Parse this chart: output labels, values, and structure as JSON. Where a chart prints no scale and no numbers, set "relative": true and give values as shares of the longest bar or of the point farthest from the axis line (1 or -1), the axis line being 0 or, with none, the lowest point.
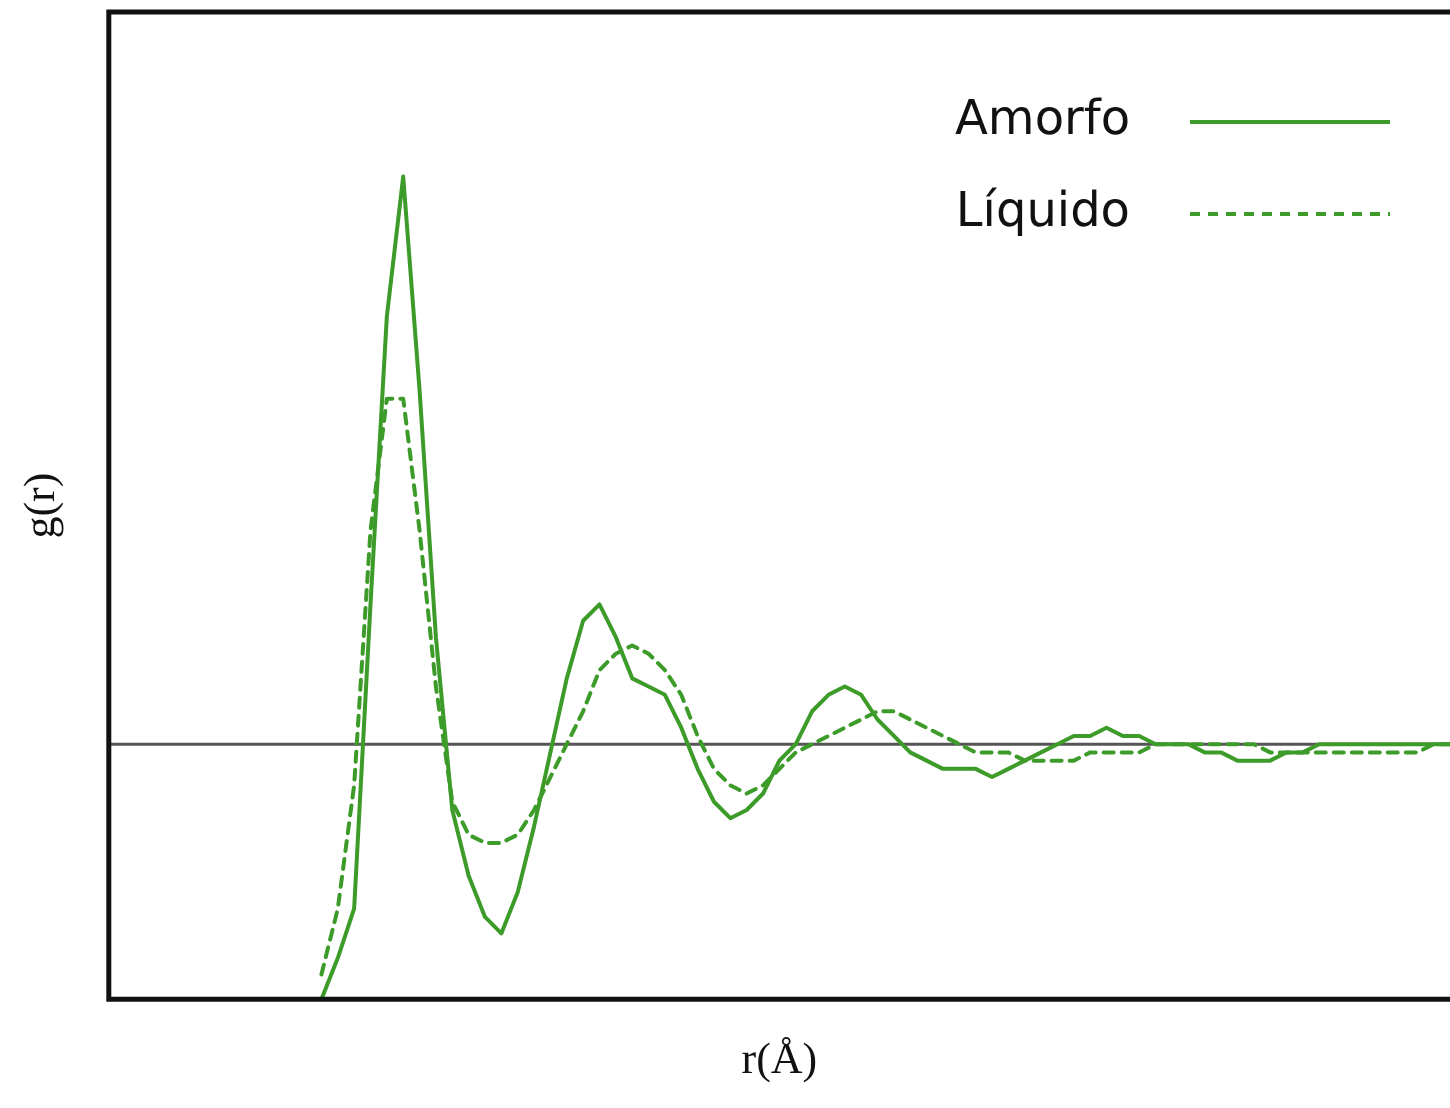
{
  "chart_data": {
    "type": "line",
    "relative": true,
    "xlabel": "r(Å)",
    "ylabel": "g(r)",
    "legend": "top right",
    "grid": false,
    "marker": "none",
    "categories": [
      null,
      null,
      null,
      null,
      null,
      null,
      null,
      null,
      null,
      null,
      null,
      null,
      null,
      null,
      null,
      null,
      null,
      null,
      null,
      null,
      null,
      null,
      null,
      null,
      null,
      null,
      null,
      null,
      null,
      null,
      null,
      null,
      null,
      null,
      null,
      null,
      null,
      null,
      null,
      null,
      null,
      null,
      null,
      null,
      null,
      null,
      null,
      null,
      null,
      null,
      null,
      null,
      null,
      null,
      null,
      null,
      null,
      null,
      null,
      null,
      null,
      null,
      null,
      null,
      null,
      null,
      null,
      null,
      null,
      null,
      null,
      null,
      null,
      null,
      null,
      null,
      null,
      null,
      null,
      null,
      null,
      null,
      null
    ],
    "series": [
      {
        "name": "Amorfo",
        "color": "#3d9b2a",
        "line_style": "solid",
        "values": [
          null,
          null,
          null,
          null,
          null,
          null,
          null,
          null,
          null,
          null,
          null,
          null,
          null,
          0,
          0.05,
          0.11,
          0.48,
          0.83,
          1,
          0.74,
          0.44,
          0.23,
          0.15,
          0.1,
          0.08,
          0.13,
          0.21,
          0.3,
          0.39,
          0.46,
          0.48,
          0.44,
          0.39,
          0.38,
          0.37,
          0.33,
          0.28,
          0.24,
          0.22,
          0.23,
          0.25,
          0.29,
          0.31,
          0.35,
          0.37,
          0.38,
          0.37,
          0.34,
          0.32,
          0.3,
          0.29,
          0.28,
          0.28,
          0.28,
          0.27,
          0.28,
          0.29,
          0.3,
          0.31,
          0.32,
          0.32,
          0.33,
          0.32,
          0.32,
          0.31,
          0.31,
          0.31,
          0.3,
          0.3,
          0.29,
          0.29,
          0.29,
          0.3,
          0.3,
          0.31,
          0.31,
          0.31,
          0.31,
          0.31,
          0.31,
          0.31,
          0.31,
          0.31
        ]
      },
      {
        "name": "Líquido",
        "color": "#3d9b2a",
        "line_style": "dashed",
        "values": [
          null,
          null,
          null,
          null,
          null,
          null,
          null,
          null,
          null,
          null,
          null,
          null,
          null,
          0.03,
          0.11,
          0.26,
          0.57,
          0.73,
          0.73,
          0.57,
          0.38,
          0.24,
          0.2,
          0.19,
          0.19,
          0.2,
          0.23,
          0.27,
          0.31,
          0.35,
          0.4,
          0.42,
          0.43,
          0.42,
          0.4,
          0.37,
          0.32,
          0.28,
          0.26,
          0.25,
          0.26,
          0.28,
          0.3,
          0.31,
          0.32,
          0.33,
          0.34,
          0.35,
          0.35,
          0.34,
          0.33,
          0.32,
          0.31,
          0.3,
          0.3,
          0.3,
          0.29,
          0.29,
          0.29,
          0.29,
          0.3,
          0.3,
          0.3,
          0.3,
          0.31,
          0.31,
          0.31,
          0.31,
          0.31,
          0.31,
          0.31,
          0.3,
          0.3,
          0.3,
          0.3,
          0.3,
          0.3,
          0.3,
          0.3,
          0.3,
          0.3,
          0.31,
          0.31
        ]
      }
    ],
    "ref_lines": [
      {
        "axis": "y",
        "value": 0.31,
        "color": "#555555"
      }
    ]
  }
}
